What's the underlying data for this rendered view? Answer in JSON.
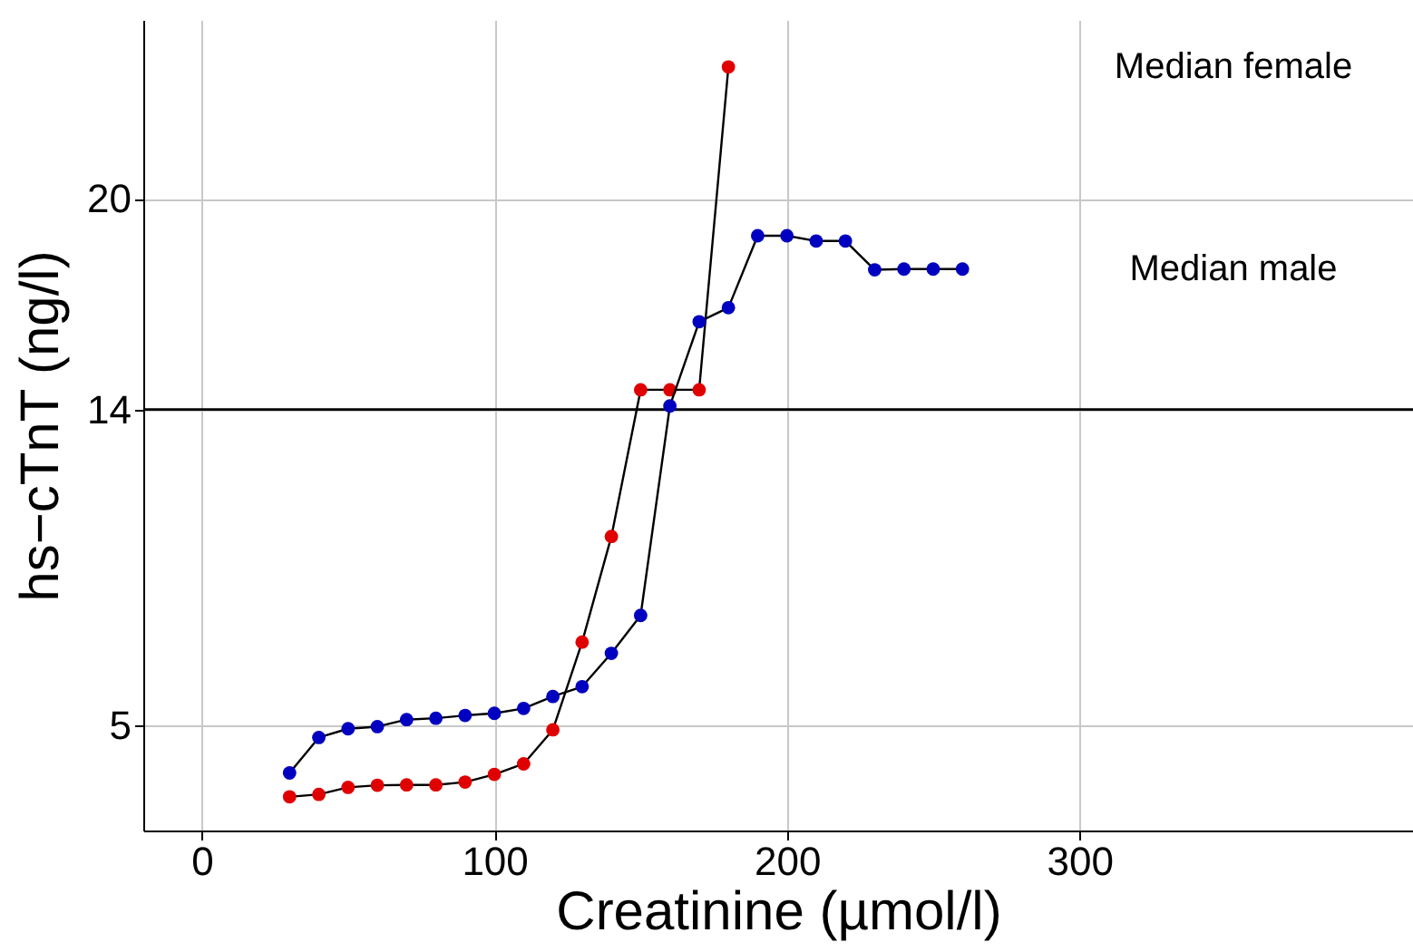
{
  "chart_data": {
    "type": "line",
    "xlabel": "Creatinine (µmol/l)",
    "ylabel": "hs−cTnT (ng/l)",
    "xlim": [
      -20,
      414
    ],
    "xticks": [
      0,
      100,
      200,
      300
    ],
    "ylim": [
      2,
      25.1
    ],
    "yticks": [
      5,
      14,
      20
    ],
    "grid": true,
    "legend": false,
    "marker": "circle",
    "line_style": "solid",
    "ref_lines": [
      {
        "axis": "y",
        "value": 14,
        "color": "#000000"
      }
    ],
    "series": [
      {
        "name": "Median female",
        "color": "#e00000",
        "x": [
          30,
          40,
          50,
          60,
          70,
          80,
          90,
          100,
          110,
          120,
          130,
          140,
          150,
          160,
          170,
          180
        ],
        "values": [
          2.96,
          3.03,
          3.23,
          3.29,
          3.3,
          3.3,
          3.38,
          3.6,
          3.9,
          4.87,
          7.37,
          10.38,
          14.56,
          14.56,
          14.56,
          23.76
        ]
      },
      {
        "name": "Median male",
        "color": "#0000c0",
        "x": [
          30,
          40,
          50,
          60,
          70,
          80,
          90,
          100,
          110,
          120,
          130,
          140,
          150,
          160,
          170,
          180,
          190,
          200,
          210,
          220,
          230,
          240,
          250,
          260
        ],
        "values": [
          3.64,
          4.65,
          4.9,
          4.96,
          5.16,
          5.2,
          5.28,
          5.34,
          5.48,
          5.82,
          6.1,
          7.05,
          8.13,
          14.1,
          16.5,
          16.9,
          18.95,
          18.95,
          18.8,
          18.8,
          17.98,
          18.0,
          18.0,
          18.0
        ]
      }
    ]
  }
}
